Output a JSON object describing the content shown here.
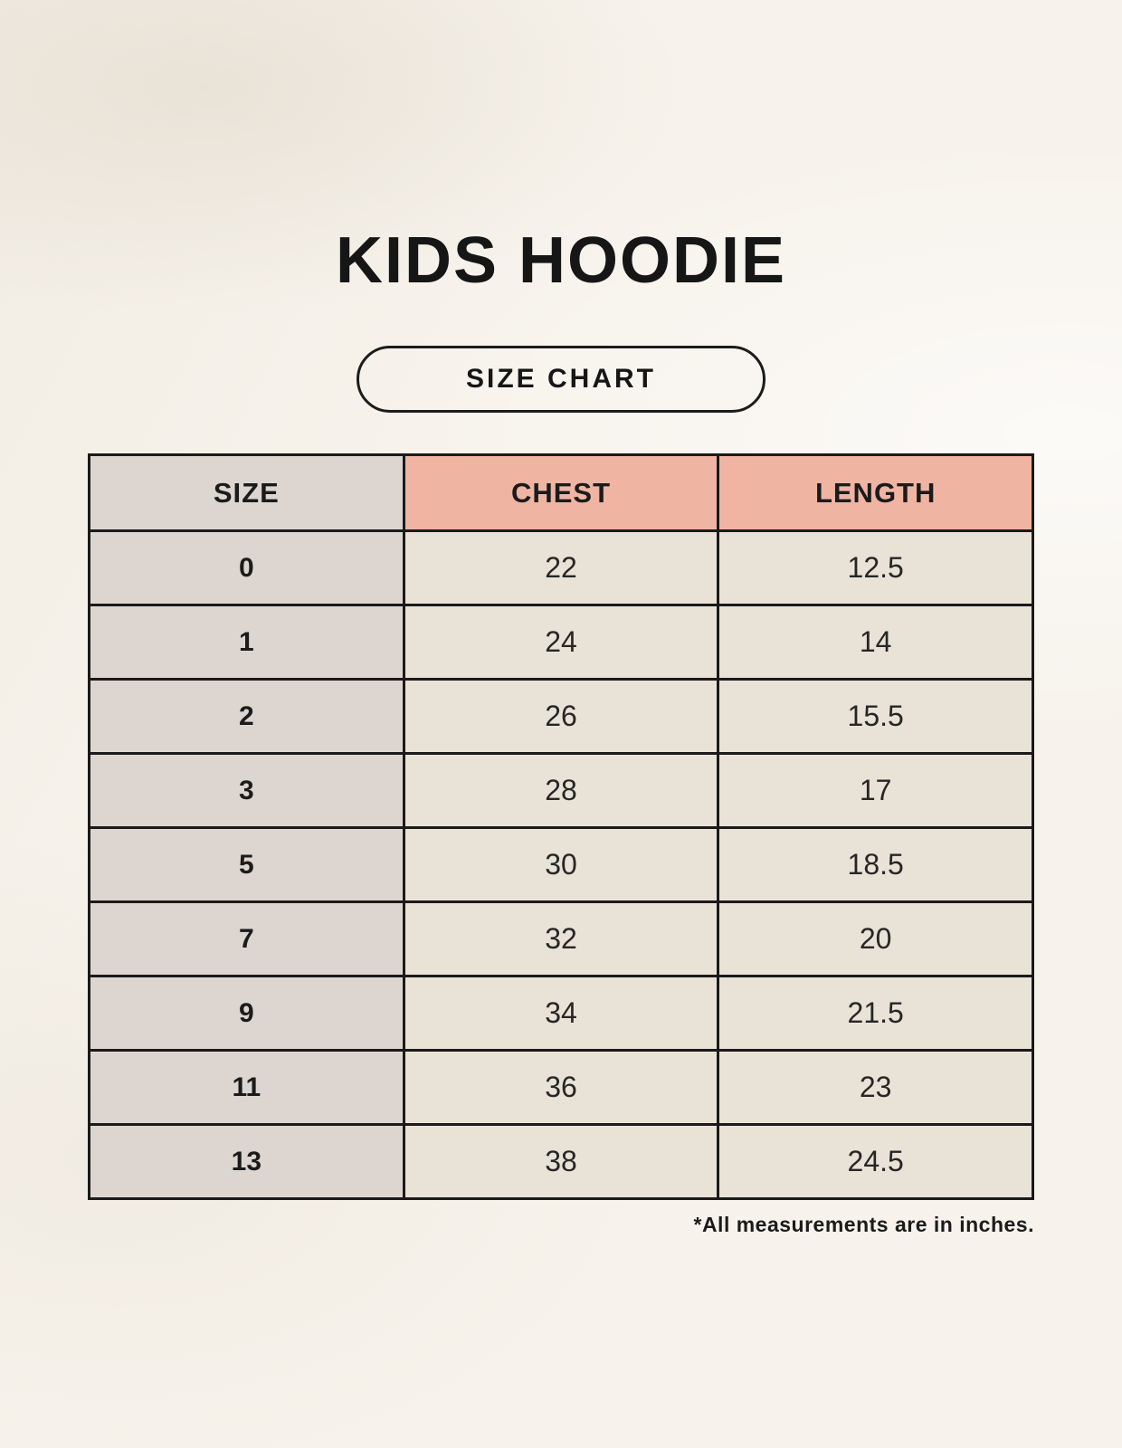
{
  "page": {
    "title": "KIDS HOODIE",
    "badge_label": "SIZE CHART",
    "footnote": "*All measurements are in inches."
  },
  "colors": {
    "background": "#f7f3ec",
    "cell_bg": "#e9e2d7",
    "size_col_bg": "#ddd6d0",
    "accent_pink": "#f0b4a3",
    "border_color": "#1a1a1a",
    "text_color": "#1d1d1d"
  },
  "table": {
    "columns": [
      "SIZE",
      "CHEST",
      "LENGTH"
    ],
    "rows": [
      [
        "0",
        "22",
        "12.5"
      ],
      [
        "1",
        "24",
        "14"
      ],
      [
        "2",
        "26",
        "15.5"
      ],
      [
        "3",
        "28",
        "17"
      ],
      [
        "5",
        "30",
        "18.5"
      ],
      [
        "7",
        "32",
        "20"
      ],
      [
        "9",
        "34",
        "21.5"
      ],
      [
        "11",
        "36",
        "23"
      ],
      [
        "13",
        "38",
        "24.5"
      ]
    ]
  }
}
